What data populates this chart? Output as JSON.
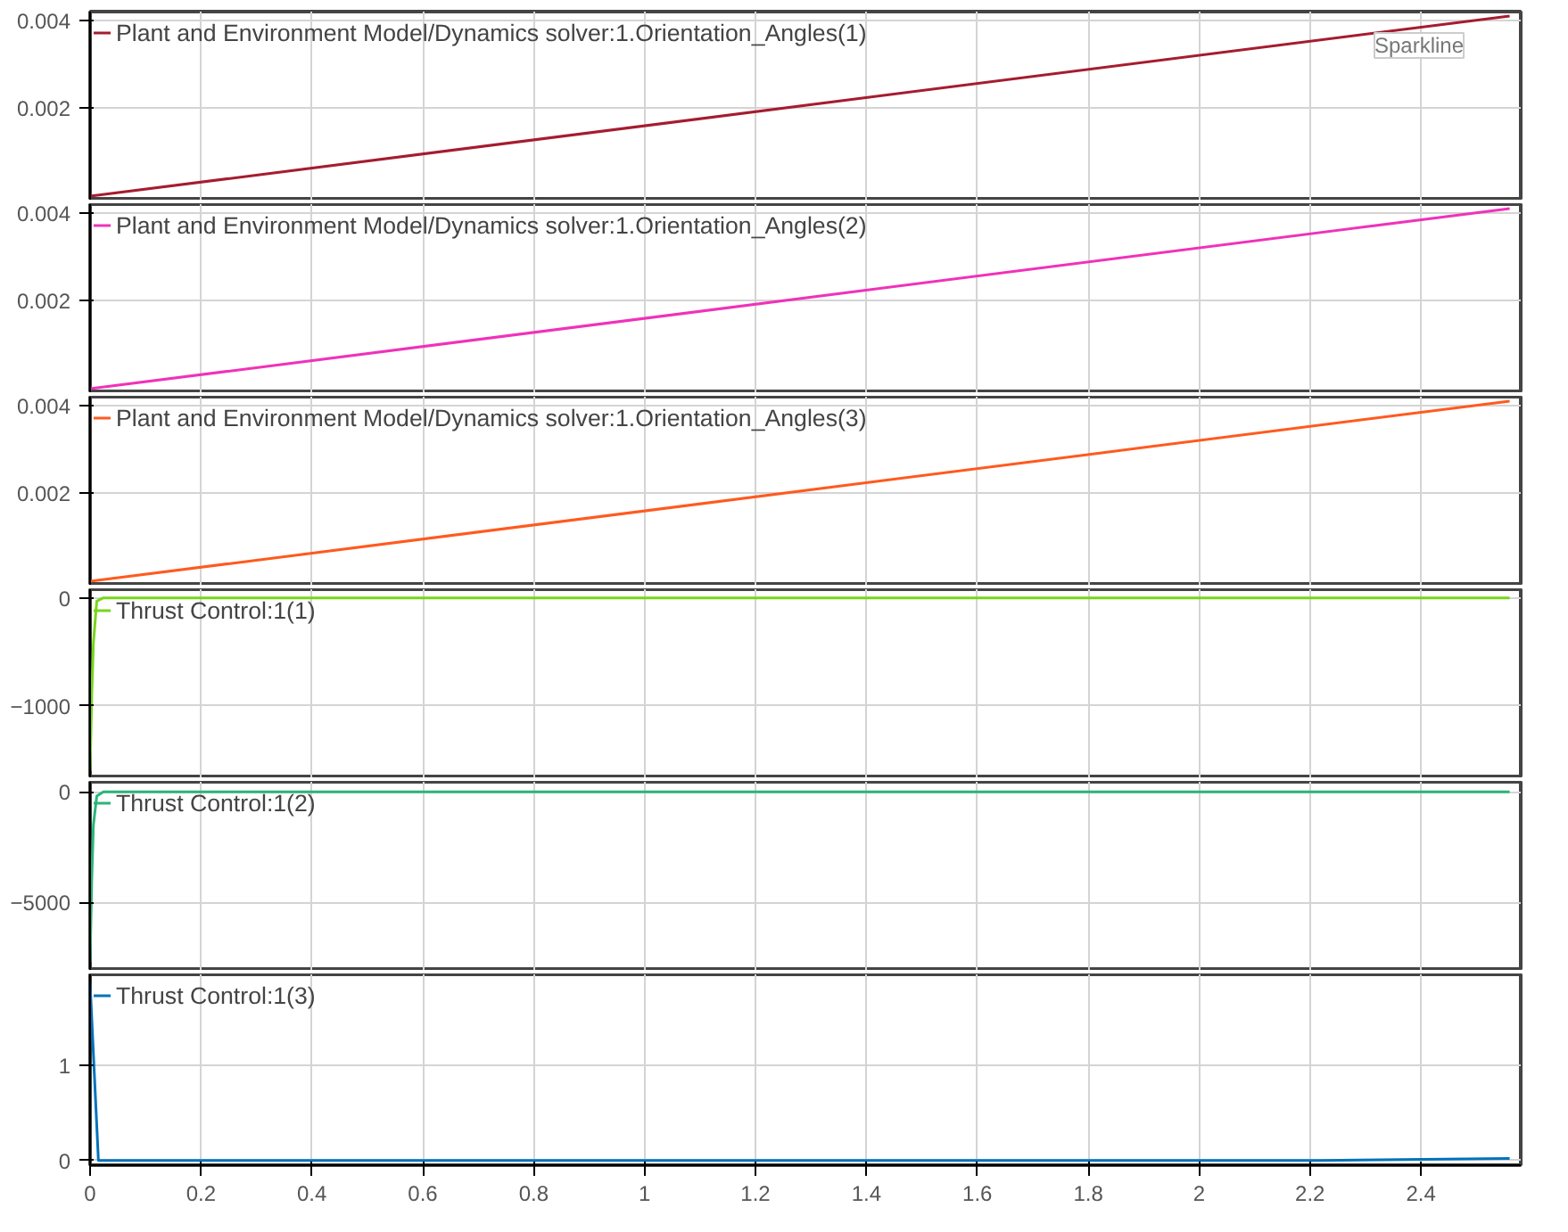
{
  "chart_data": [
    {
      "type": "line",
      "x": [
        0,
        2.56
      ],
      "series": [
        {
          "name": "Plant and Environment Model/Dynamics solver:1.Orientation_Angles(1)",
          "color": "#a51c30",
          "values": [
            0,
            0.0041
          ]
        }
      ],
      "xlim": [
        0,
        2.58
      ],
      "xticks": [
        0,
        0.2,
        0.4,
        0.6,
        0.8,
        1.0,
        1.2,
        1.4,
        1.6,
        1.8,
        2.0,
        2.2,
        2.4
      ],
      "ylim": [
        -0.0001,
        0.0042
      ],
      "yticks": [
        0.002,
        0.004
      ],
      "grid": true,
      "legend": "top left",
      "tick_labels": "y",
      "annotations": [
        "Sparkline"
      ]
    },
    {
      "type": "line",
      "x": [
        0,
        2.56
      ],
      "series": [
        {
          "name": "Plant and Environment Model/Dynamics solver:1.Orientation_Angles(2)",
          "color": "#f032b8",
          "values": [
            0,
            0.0041
          ]
        }
      ],
      "xlim": [
        0,
        2.58
      ],
      "xticks": [
        0,
        0.2,
        0.4,
        0.6,
        0.8,
        1.0,
        1.2,
        1.4,
        1.6,
        1.8,
        2.0,
        2.2,
        2.4
      ],
      "ylim": [
        -0.0001,
        0.0042
      ],
      "yticks": [
        0.002,
        0.004
      ],
      "grid": true,
      "legend": "top left",
      "tick_labels": "y"
    },
    {
      "type": "line",
      "x": [
        0,
        2.56
      ],
      "series": [
        {
          "name": "Plant and Environment Model/Dynamics solver:1.Orientation_Angles(3)",
          "color": "#ff5a1f",
          "values": [
            0,
            0.0041
          ]
        }
      ],
      "xlim": [
        0,
        2.58
      ],
      "xticks": [
        0,
        0.2,
        0.4,
        0.6,
        0.8,
        1.0,
        1.2,
        1.4,
        1.6,
        1.8,
        2.0,
        2.2,
        2.4
      ],
      "ylim": [
        -0.0001,
        0.0042
      ],
      "yticks": [
        0.002,
        0.004
      ],
      "grid": true,
      "legend": "top left",
      "tick_labels": "y"
    },
    {
      "type": "line",
      "x": [
        0,
        0.003,
        0.006,
        0.012,
        0.024,
        2.56
      ],
      "series": [
        {
          "name": "Thrust Control:1(1)",
          "color": "#77d61b",
          "values": [
            -1600,
            -900,
            -420,
            -30,
            0,
            0
          ]
        }
      ],
      "xlim": [
        0,
        2.58
      ],
      "xticks": [
        0,
        0.2,
        0.4,
        0.6,
        0.8,
        1.0,
        1.2,
        1.4,
        1.6,
        1.8,
        2.0,
        2.2,
        2.4
      ],
      "ylim": [
        -1670,
        80
      ],
      "yticks": [
        -1000,
        0
      ],
      "grid": true,
      "legend": "top left",
      "tick_labels": "y"
    },
    {
      "type": "line",
      "x": [
        0,
        0.003,
        0.006,
        0.012,
        0.024,
        2.56
      ],
      "series": [
        {
          "name": "Thrust Control:1(2)",
          "color": "#2bb57a",
          "values": [
            -7700,
            -4000,
            -1500,
            -200,
            0,
            0
          ]
        }
      ],
      "xlim": [
        0,
        2.58
      ],
      "xticks": [
        0,
        0.2,
        0.4,
        0.6,
        0.8,
        1.0,
        1.2,
        1.4,
        1.6,
        1.8,
        2.0,
        2.2,
        2.4
      ],
      "ylim": [
        -8100,
        450
      ],
      "yticks": [
        -5000,
        0
      ],
      "grid": true,
      "legend": "top left",
      "tick_labels": "y"
    },
    {
      "type": "line",
      "x": [
        0,
        0.015,
        2.22,
        2.56
      ],
      "series": [
        {
          "name": "Thrust Control:1(3)",
          "color": "#0072bd",
          "values": [
            1.86,
            0,
            0,
            0.02
          ]
        }
      ],
      "xlim": [
        0,
        2.58
      ],
      "xticks": [
        0,
        0.2,
        0.4,
        0.6,
        0.8,
        1.0,
        1.2,
        1.4,
        1.6,
        1.8,
        2.0,
        2.2,
        2.4
      ],
      "ylim": [
        -0.05,
        1.95
      ],
      "yticks": [
        0,
        1
      ],
      "grid": true,
      "legend": "top left"
    }
  ]
}
